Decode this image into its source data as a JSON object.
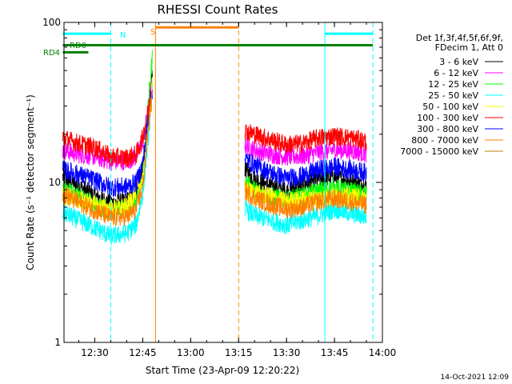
{
  "chart_data": {
    "type": "line",
    "title": "RHESSI Count Rates",
    "xlabel": "Start Time (23-Apr-09 12:20:22)",
    "ylabel": "Count Rate (s⁻¹ detector segment⁻¹)",
    "yscale": "log",
    "ylim": [
      1,
      100
    ],
    "xlim": [
      "12:20:22",
      "14:00:00"
    ],
    "x_ticks": [
      "12:30",
      "12:45",
      "13:00",
      "13:15",
      "13:30",
      "13:45",
      "14:00"
    ],
    "y_ticks": [
      "1",
      "10",
      "100"
    ],
    "legend_header": [
      "Det 1f,3f,4f,5f,6f,9f,",
      "FDecim 1, Att 0"
    ],
    "legend_position": "right",
    "timestamp": "14-Oct-2021 12:09",
    "series": [
      {
        "name": "3 - 6 keV",
        "color": "#000000",
        "points": [
          [
            "12:20",
            10.8
          ],
          [
            "12:25",
            9.5
          ],
          [
            "12:30",
            8.2
          ],
          [
            "12:35",
            7.4
          ],
          [
            "12:40",
            7.6
          ],
          [
            "12:43",
            8.5
          ],
          [
            "12:45",
            12
          ],
          [
            "12:47",
            30
          ],
          [
            "12:48",
            50
          ],
          [
            "13:17",
            12
          ],
          [
            "13:20",
            10.5
          ],
          [
            "13:25",
            9.5
          ],
          [
            "13:30",
            8.8
          ],
          [
            "13:35",
            9.6
          ],
          [
            "13:40",
            10.5
          ],
          [
            "13:45",
            10.8
          ],
          [
            "13:50",
            10.2
          ],
          [
            "13:55",
            9.6
          ]
        ]
      },
      {
        "name": "6 - 12 keV",
        "color": "#ff00ff",
        "points": [
          [
            "12:20",
            16
          ],
          [
            "12:25",
            15
          ],
          [
            "12:30",
            14.5
          ],
          [
            "12:35",
            13.5
          ],
          [
            "12:40",
            13.6
          ],
          [
            "12:43",
            14.5
          ],
          [
            "12:45",
            18
          ],
          [
            "12:47",
            30
          ],
          [
            "12:48",
            45
          ],
          [
            "13:17",
            17
          ],
          [
            "13:20",
            16
          ],
          [
            "13:25",
            15
          ],
          [
            "13:30",
            14.5
          ],
          [
            "13:35",
            14.6
          ],
          [
            "13:40",
            15.5
          ],
          [
            "13:45",
            16
          ],
          [
            "13:50",
            15.8
          ],
          [
            "13:55",
            15.2
          ]
        ]
      },
      {
        "name": "12 - 25 keV",
        "color": "#00ff00",
        "points": [
          [
            "12:20",
            9
          ],
          [
            "12:25",
            8.2
          ],
          [
            "12:30",
            7.2
          ],
          [
            "12:35",
            6.6
          ],
          [
            "12:40",
            6.8
          ],
          [
            "12:43",
            7.5
          ],
          [
            "12:45",
            11
          ],
          [
            "12:47",
            35
          ],
          [
            "12:48",
            60
          ],
          [
            "13:17",
            10
          ],
          [
            "13:20",
            9
          ],
          [
            "13:25",
            8.2
          ],
          [
            "13:30",
            7.8
          ],
          [
            "13:35",
            8.2
          ],
          [
            "13:40",
            8.8
          ],
          [
            "13:45",
            9.2
          ],
          [
            "13:50",
            8.8
          ],
          [
            "13:55",
            8.4
          ]
        ]
      },
      {
        "name": "25 - 50 keV",
        "color": "#00ffff",
        "points": [
          [
            "12:20",
            6.5
          ],
          [
            "12:25",
            5.8
          ],
          [
            "12:30",
            5.2
          ],
          [
            "12:35",
            4.6
          ],
          [
            "12:40",
            4.8
          ],
          [
            "12:43",
            5.5
          ],
          [
            "12:45",
            8.5
          ],
          [
            "12:47",
            22
          ],
          [
            "12:48",
            38
          ],
          [
            "13:17",
            6.8
          ],
          [
            "13:20",
            6.2
          ],
          [
            "13:25",
            5.8
          ],
          [
            "13:30",
            5.4
          ],
          [
            "13:35",
            5.8
          ],
          [
            "13:40",
            6.2
          ],
          [
            "13:45",
            6.8
          ],
          [
            "13:50",
            6.4
          ],
          [
            "13:55",
            6.1
          ]
        ]
      },
      {
        "name": "50 - 100 keV",
        "color": "#ffff00",
        "points": [
          [
            "12:20",
            8.3
          ],
          [
            "12:25",
            7.8
          ],
          [
            "12:30",
            7.2
          ],
          [
            "12:35",
            6.8
          ],
          [
            "12:40",
            7.0
          ],
          [
            "12:45",
            10.5
          ],
          [
            "12:48",
            40
          ],
          [
            "13:17",
            9
          ],
          [
            "13:30",
            7.6
          ],
          [
            "13:45",
            8.2
          ],
          [
            "13:55",
            8.0
          ]
        ]
      },
      {
        "name": "100 - 300 keV",
        "color": "#ff0000",
        "points": [
          [
            "12:20",
            19
          ],
          [
            "12:25",
            17.5
          ],
          [
            "12:30",
            16.5
          ],
          [
            "12:35",
            14.5
          ],
          [
            "12:40",
            14.2
          ],
          [
            "12:43",
            15
          ],
          [
            "12:45",
            19
          ],
          [
            "12:47",
            30
          ],
          [
            "12:48",
            40
          ],
          [
            "13:17",
            21
          ],
          [
            "13:20",
            20
          ],
          [
            "13:25",
            18.5
          ],
          [
            "13:30",
            17.2
          ],
          [
            "13:35",
            17.5
          ],
          [
            "13:40",
            19
          ],
          [
            "13:45",
            19.5
          ],
          [
            "13:50",
            19
          ],
          [
            "13:55",
            18
          ]
        ]
      },
      {
        "name": "300 - 800 keV",
        "color": "#0000ff",
        "points": [
          [
            "12:20",
            12
          ],
          [
            "12:25",
            11.2
          ],
          [
            "12:30",
            10.3
          ],
          [
            "12:35",
            9.3
          ],
          [
            "12:40",
            9.4
          ],
          [
            "12:43",
            10
          ],
          [
            "12:45",
            13
          ],
          [
            "12:47",
            28
          ],
          [
            "12:48",
            38
          ],
          [
            "13:17",
            14
          ],
          [
            "13:20",
            12.8
          ],
          [
            "13:25",
            11.5
          ],
          [
            "13:30",
            10.6
          ],
          [
            "13:35",
            11
          ],
          [
            "13:40",
            12
          ],
          [
            "13:45",
            12.5
          ],
          [
            "13:50",
            12
          ],
          [
            "13:55",
            11.5
          ]
        ]
      },
      {
        "name": "800 - 7000 keV",
        "color": "#ff8000",
        "points": [
          [
            "12:20",
            8.5
          ],
          [
            "12:25",
            7.5
          ],
          [
            "12:30",
            6.7
          ],
          [
            "12:35",
            6.0
          ],
          [
            "12:40",
            6.1
          ],
          [
            "12:43",
            6.8
          ],
          [
            "12:45",
            9.5
          ],
          [
            "12:47",
            25
          ],
          [
            "12:48",
            35
          ],
          [
            "13:17",
            8.8
          ],
          [
            "13:20",
            8.0
          ],
          [
            "13:25",
            7.3
          ],
          [
            "13:30",
            6.8
          ],
          [
            "13:35",
            7.0
          ],
          [
            "13:40",
            7.6
          ],
          [
            "13:45",
            7.9
          ],
          [
            "13:50",
            7.6
          ],
          [
            "13:55",
            7.2
          ]
        ]
      },
      {
        "name": "7000 - 15000 keV",
        "color": "#b8860b",
        "points": []
      }
    ],
    "bars": [
      {
        "label": "N",
        "color": "#00ffff",
        "level": 85,
        "segments": [
          [
            "12:20",
            "12:35"
          ],
          [
            "13:42",
            "13:57"
          ]
        ]
      },
      {
        "label": "S",
        "color": "#ff8000",
        "level": 93,
        "segments": [
          [
            "12:49",
            "13:15"
          ]
        ]
      },
      {
        "label": "RD0",
        "color": "#008000",
        "level": 72,
        "segments": [
          [
            "12:20",
            "13:57"
          ]
        ]
      },
      {
        "label": "RD4",
        "color": "#008000",
        "level": 65,
        "segments": [
          [
            "12:20",
            "12:28"
          ]
        ]
      }
    ],
    "vlines": [
      {
        "color": "#00ffff",
        "style": "solid",
        "x": "12:20:22"
      },
      {
        "color": "#00ffff",
        "style": "dashed",
        "x": "12:35:00"
      },
      {
        "color": "#ff8000",
        "style": "solid",
        "x": "12:49:00"
      },
      {
        "color": "#ff8000",
        "style": "dashed",
        "x": "13:15:00"
      },
      {
        "color": "#00ffff",
        "style": "solid",
        "x": "13:42:00"
      },
      {
        "color": "#00ffff",
        "style": "dashed",
        "x": "13:57:00"
      }
    ]
  }
}
